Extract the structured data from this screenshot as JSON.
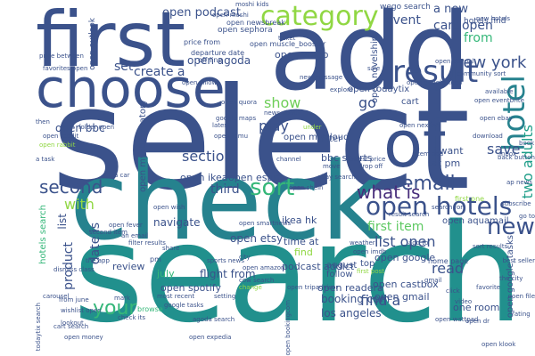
{
  "title": "",
  "palette": {
    "background": "#ffffff",
    "c1": "#21908d",
    "c2": "#3b528b",
    "c3": "#31688e",
    "c4": "#440154",
    "c5": "#35b779",
    "c6": "#90d743",
    "c7": "#fde725",
    "c8": "#26828e",
    "c9": "#1f9e89",
    "c10": "#6ece58",
    "c11": "#472d7b",
    "c12": "#2c728e",
    "c13": "#5ec962"
  },
  "words": [
    {
      "id": "select",
      "text": "select"
    },
    {
      "id": "check",
      "text": "check"
    },
    {
      "id": "search",
      "text": "search"
    },
    {
      "id": "add",
      "text": "add"
    },
    {
      "id": "first",
      "text": "first"
    },
    {
      "id": "choose",
      "text": "choose"
    },
    {
      "id": "of",
      "text": "of"
    },
    {
      "id": "open-hotels",
      "text": "open hotels"
    },
    {
      "id": "category",
      "text": "category"
    },
    {
      "id": "result",
      "text": "result"
    },
    {
      "id": "hotel",
      "text": "hotel"
    },
    {
      "id": "new-york",
      "text": "new york"
    },
    {
      "id": "email",
      "text": "email"
    },
    {
      "id": "what-is",
      "text": "what is"
    },
    {
      "id": "sort",
      "text": "sort"
    },
    {
      "id": "new",
      "text": "new"
    },
    {
      "id": "second",
      "text": "second"
    },
    {
      "id": "open-podcast",
      "text": "open podcast"
    },
    {
      "id": "create-a",
      "text": "create a"
    },
    {
      "id": "set",
      "text": "set"
    },
    {
      "id": "section",
      "text": "section"
    },
    {
      "id": "play",
      "text": "play"
    },
    {
      "id": "show",
      "text": "show"
    },
    {
      "id": "go",
      "text": "go"
    },
    {
      "id": "save",
      "text": "save"
    },
    {
      "id": "cart-open",
      "text": "cart open"
    },
    {
      "id": "event",
      "text": "event"
    },
    {
      "id": "from",
      "text": "from"
    },
    {
      "id": "a-new",
      "text": "a new"
    },
    {
      "id": "two-adults",
      "text": "two adults"
    },
    {
      "id": "list-open",
      "text": "list open"
    },
    {
      "id": "first-item",
      "text": "first item"
    },
    {
      "id": "find-a",
      "text": "find a"
    },
    {
      "id": "read",
      "text": "read"
    },
    {
      "id": "date-is",
      "text": "date is"
    },
    {
      "id": "product",
      "text": "product"
    },
    {
      "id": "third",
      "text": "third"
    },
    {
      "id": "with",
      "text": "with"
    },
    {
      "id": "your",
      "text": "your"
    },
    {
      "id": "open-bbc",
      "text": "open bbc"
    },
    {
      "id": "list",
      "text": "list"
    },
    {
      "id": "open-agoda",
      "text": "open agoda"
    },
    {
      "id": "open-ikea",
      "text": "open ikea"
    },
    {
      "id": "open-espn",
      "text": "open espn"
    },
    {
      "id": "bbc-sports",
      "text": "bbc sports"
    },
    {
      "id": "at-pm",
      "text": "at pm"
    },
    {
      "id": "i-want",
      "text": "i want"
    },
    {
      "id": "open-wego",
      "text": "open wego"
    },
    {
      "id": "ikea-hk",
      "text": "ikea hk"
    },
    {
      "id": "navigate",
      "text": "navigate"
    },
    {
      "id": "open-etsy",
      "text": "open etsy"
    },
    {
      "id": "time-at",
      "text": "time at"
    },
    {
      "id": "find",
      "text": "find"
    },
    {
      "id": "review",
      "text": "review"
    },
    {
      "id": "july",
      "text": "july"
    },
    {
      "id": "flight-from",
      "text": "flight from"
    },
    {
      "id": "open-spotify",
      "text": "open spotify"
    },
    {
      "id": "podcast-addict",
      "text": "podcast addict"
    },
    {
      "id": "booking-com",
      "text": "booking com"
    },
    {
      "id": "los-angeles",
      "text": "los angeles"
    },
    {
      "id": "open-google",
      "text": "open google"
    },
    {
      "id": "open-castbox",
      "text": "open castbox"
    },
    {
      "id": "open-gmail",
      "text": "open gmail"
    },
    {
      "id": "open-readera",
      "text": "open readera"
    },
    {
      "id": "follow",
      "text": "follow"
    },
    {
      "id": "august",
      "text": "august"
    },
    {
      "id": "top",
      "text": "top"
    },
    {
      "id": "one-room",
      "text": "one room"
    },
    {
      "id": "open-google-tasks",
      "text": "open google_tasks"
    },
    {
      "id": "open-aquamail",
      "text": "open aquamail"
    },
    {
      "id": "open-myobservatory",
      "text": "open myobservatory"
    },
    {
      "id": "hotels-search",
      "text": "hotels search"
    },
    {
      "id": "open-todaytix",
      "text": "open todaytix"
    },
    {
      "id": "open-novelship",
      "text": "open novelship"
    },
    {
      "id": "wego-search",
      "text": "wego search"
    },
    {
      "id": "hotels-find",
      "text": "hotels find"
    },
    {
      "id": "filter",
      "text": "filter"
    },
    {
      "id": "open-mixcloud",
      "text": "open mixcloud"
    },
    {
      "id": "open-outlook",
      "text": "open outlook"
    },
    {
      "id": "open-sephora",
      "text": "open sephora"
    },
    {
      "id": "open-muscle-booster",
      "text": "open muscle_booster"
    },
    {
      "id": "open-newsbreak",
      "text": "open newsbreak"
    },
    {
      "id": "departure-date",
      "text": "departure date"
    },
    {
      "id": "price-from",
      "text": "price from"
    },
    {
      "id": "off-line",
      "text": "off line"
    },
    {
      "id": "open-rabbit",
      "text": "open rabbit"
    },
    {
      "id": "favorites-open",
      "text": "favorites open"
    },
    {
      "id": "price-between",
      "text": "price between"
    },
    {
      "id": "then",
      "text": "then"
    },
    {
      "id": "folder-open",
      "text": "folder open"
    },
    {
      "id": "open-reddit",
      "text": "open reddit"
    },
    {
      "id": "a-task",
      "text": "a task"
    },
    {
      "id": "a-car",
      "text": "a car"
    },
    {
      "id": "open-temu",
      "text": "open temu"
    },
    {
      "id": "open-ebay",
      "text": "open ebay"
    },
    {
      "id": "open-shein",
      "text": "open shein"
    },
    {
      "id": "open-nexfish",
      "text": "open nexfish"
    },
    {
      "id": "ebay-search",
      "text": "ebay search"
    },
    {
      "id": "item-add",
      "text": "item add"
    },
    {
      "id": "first-one",
      "text": "first one"
    },
    {
      "id": "ap-news",
      "text": "ap news"
    },
    {
      "id": "download",
      "text": "download"
    },
    {
      "id": "available",
      "text": "available"
    },
    {
      "id": "open-eventbrite",
      "text": "open eventbrite"
    },
    {
      "id": "open-imdb",
      "text": "open imdb"
    },
    {
      "id": "open-smartnews",
      "text": "open smartnews"
    },
    {
      "id": "city",
      "text": "city"
    },
    {
      "id": "share",
      "text": "share"
    },
    {
      "id": "dismiss-class",
      "text": "dismiss class"
    },
    {
      "id": "second-item",
      "text": "second item"
    },
    {
      "id": "explore",
      "text": "explore"
    },
    {
      "id": "lowest-price",
      "text": "lowest price"
    },
    {
      "id": "drop-off",
      "text": "drop off"
    },
    {
      "id": "move",
      "text": "move"
    },
    {
      "id": "channel",
      "text": "channel"
    },
    {
      "id": "under",
      "text": "under"
    },
    {
      "id": "news-about",
      "text": "news about"
    },
    {
      "id": "latest",
      "text": "latest"
    },
    {
      "id": "google-maps",
      "text": "google maps"
    },
    {
      "id": "open-zillow",
      "text": "open zillow"
    },
    {
      "id": "open-quora",
      "text": "open quora"
    },
    {
      "id": "cart",
      "text": "cart"
    },
    {
      "id": "open-wish",
      "text": "open wish"
    },
    {
      "id": "sort-results",
      "text": "sort results"
    },
    {
      "id": "result-search",
      "text": "result search"
    },
    {
      "id": "home-page",
      "text": "home page"
    },
    {
      "id": "the-city",
      "text": "the city"
    },
    {
      "id": "from-june",
      "text": "from june"
    },
    {
      "id": "check-its",
      "text": "check its"
    },
    {
      "id": "most-recent",
      "text": "most recent"
    },
    {
      "id": "google-tasks",
      "text": "google tasks"
    },
    {
      "id": "agoda-search",
      "text": "agoda search"
    },
    {
      "id": "open-amazon",
      "text": "open amazon"
    },
    {
      "id": "pm",
      "text": "pm"
    },
    {
      "id": "browse",
      "text": "browse"
    },
    {
      "id": "mark",
      "text": "mark"
    },
    {
      "id": "setting",
      "text": "setting"
    },
    {
      "id": "change",
      "text": "change"
    },
    {
      "id": "open-bookingcom",
      "text": "open bookingcom"
    },
    {
      "id": "carousel",
      "text": "carousel"
    },
    {
      "id": "wishlist-open",
      "text": "wishlist open"
    },
    {
      "id": "todaytix-search",
      "text": "todaytix search"
    },
    {
      "id": "lookout",
      "text": "lookout"
    },
    {
      "id": "open-wattpad",
      "text": "open wattpad"
    },
    {
      "id": "favorite",
      "text": "favorite"
    },
    {
      "id": "video",
      "text": "video"
    },
    {
      "id": "new-hotels",
      "text": "new hotels"
    },
    {
      "id": "back-button",
      "text": "back button"
    },
    {
      "id": "ticket",
      "text": "ticket"
    },
    {
      "id": "moshi-kids",
      "text": "moshi kids"
    },
    {
      "id": "open-moshi",
      "text": "open moshi"
    },
    {
      "id": "new-message",
      "text": "new message"
    },
    {
      "id": "sale",
      "text": "sale"
    },
    {
      "id": "open-google-keep",
      "text": "open google keep"
    },
    {
      "id": "book",
      "text": "book"
    },
    {
      "id": "inbox",
      "text": "inbox"
    },
    {
      "id": "search-for",
      "text": "search for"
    },
    {
      "id": "open-paypal",
      "text": "open paypal"
    },
    {
      "id": "community-sort",
      "text": "community sort"
    },
    {
      "id": "add-to",
      "text": "add to"
    },
    {
      "id": "weather",
      "text": "weather"
    },
    {
      "id": "open-tripadvisor",
      "text": "open tripadvisor"
    },
    {
      "id": "the-app",
      "text": "the app"
    },
    {
      "id": "sports-news",
      "text": "sports news"
    },
    {
      "id": "filter-results",
      "text": "filter results"
    },
    {
      "id": "open-fever",
      "text": "open fever"
    },
    {
      "id": "an-email",
      "text": "an email"
    },
    {
      "id": "cow-search",
      "text": "cow search"
    },
    {
      "id": "first-post",
      "text": "first post"
    },
    {
      "id": "open-dr",
      "text": "open dr"
    },
    {
      "id": "open-expedia",
      "text": "open expedia"
    },
    {
      "id": "best-seller",
      "text": "best seller"
    },
    {
      "id": "open-money",
      "text": "open money"
    },
    {
      "id": "open-klook",
      "text": "open klook"
    },
    {
      "id": "click",
      "text": "click"
    },
    {
      "id": "gmail",
      "text": "gmail"
    },
    {
      "id": "cart-search",
      "text": "cart search"
    },
    {
      "id": "rating",
      "text": "rating"
    },
    {
      "id": "go-to",
      "text": "go to"
    },
    {
      "id": "open-file",
      "text": "open file"
    },
    {
      "id": "subscribe",
      "text": "subscribe"
    }
  ]
}
